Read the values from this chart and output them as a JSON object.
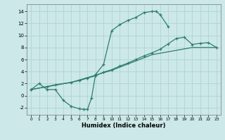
{
  "xlabel": "Humidex (Indice chaleur)",
  "xlim": [
    -0.5,
    23.5
  ],
  "ylim": [
    -3.2,
    15.2
  ],
  "xticks": [
    0,
    1,
    2,
    3,
    4,
    5,
    6,
    7,
    8,
    9,
    10,
    11,
    12,
    13,
    14,
    15,
    16,
    17,
    18,
    19,
    20,
    21,
    22,
    23
  ],
  "yticks": [
    -2,
    0,
    2,
    4,
    6,
    8,
    10,
    12,
    14
  ],
  "bg_color": "#cce8e8",
  "grid_color": "#aad0d0",
  "line_color": "#2d7d6e",
  "line1_x": [
    0,
    1,
    2,
    3,
    4,
    5,
    6,
    6.5,
    7,
    7.5,
    8,
    9,
    10,
    11,
    12,
    13,
    14,
    15,
    15.5,
    16,
    17
  ],
  "line1_y": [
    1.0,
    2.0,
    1.0,
    1.0,
    -0.8,
    -1.8,
    -2.2,
    -2.3,
    -2.3,
    -0.4,
    3.5,
    5.2,
    10.8,
    11.8,
    12.5,
    13.0,
    13.8,
    14.0,
    14.0,
    13.5,
    11.5
  ],
  "line2_x": [
    0,
    2,
    3,
    5,
    6,
    7,
    8,
    9,
    10,
    11,
    12,
    13,
    14,
    15,
    16,
    17,
    18,
    19,
    20,
    21,
    22,
    23
  ],
  "line2_y": [
    1.0,
    1.5,
    1.8,
    2.2,
    2.5,
    2.9,
    3.3,
    3.9,
    4.3,
    4.9,
    5.4,
    6.0,
    6.6,
    7.1,
    7.7,
    8.6,
    9.5,
    9.7,
    8.5,
    8.7,
    8.8,
    8.0
  ],
  "line3_x": [
    0,
    5,
    10,
    15,
    20,
    23
  ],
  "line3_y": [
    1.0,
    2.2,
    4.2,
    6.8,
    8.0,
    8.0
  ]
}
